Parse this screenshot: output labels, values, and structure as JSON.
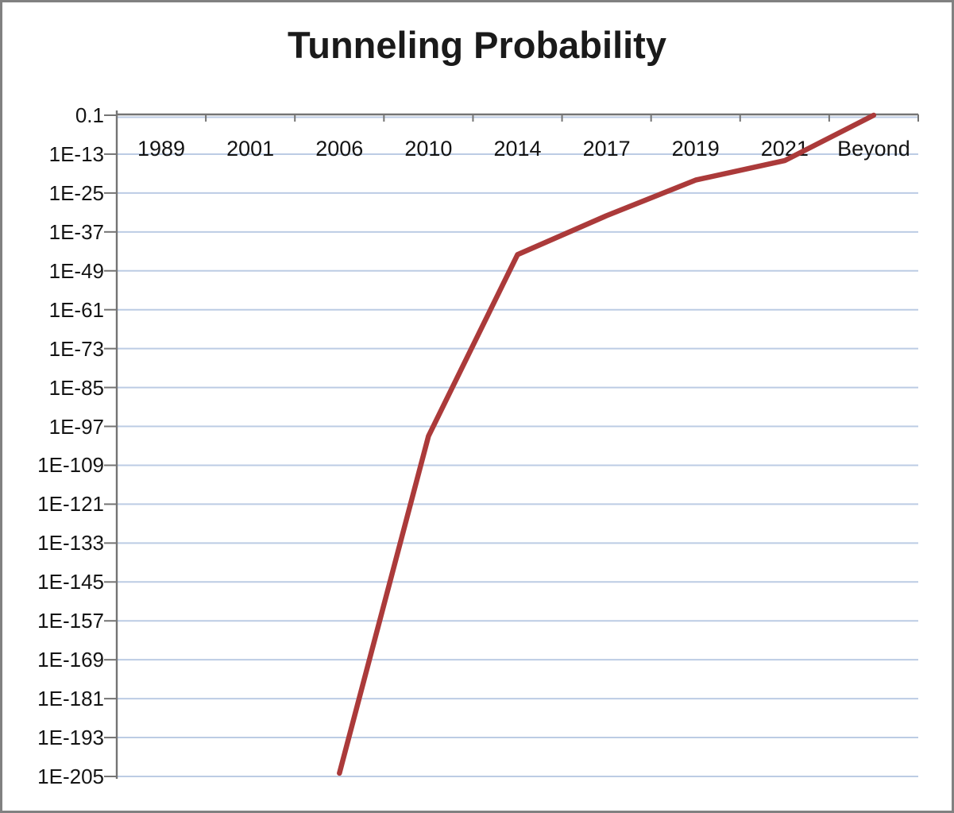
{
  "title": "Tunneling Probability",
  "chart_data": {
    "type": "line",
    "title": "Tunneling Probability",
    "categories": [
      "1989",
      "2001",
      "2006",
      "2010",
      "2014",
      "2017",
      "2019",
      "2021",
      "Beyond"
    ],
    "series": [
      {
        "name": "Tunneling Probability",
        "color": "#ab3a3a",
        "values": [
          null,
          null,
          1e-204,
          1e-100,
          1e-44,
          1e-32,
          1e-21,
          1e-15,
          0.1
        ]
      }
    ],
    "y_axis": {
      "scale": "log",
      "top_exponent": -1,
      "bottom_exponent": -205,
      "tick_labels": [
        "0.1",
        "1E-13",
        "1E-25",
        "1E-37",
        "1E-49",
        "1E-61",
        "1E-73",
        "1E-85",
        "1E-97",
        "1E-109",
        "1E-121",
        "1E-133",
        "1E-145",
        "1E-157",
        "1E-169",
        "1E-181",
        "1E-193",
        "1E-205"
      ]
    },
    "x_axis": {
      "position": "top",
      "labels_inside_plot": true
    },
    "grid": true,
    "legend_position": "none",
    "colors": {
      "series_line": "#ab3a3a",
      "gridline": "#bccce4",
      "axis_line": "#747474",
      "tick_text": "#141414",
      "title_text": "#1a1a1a",
      "background": "#ffffff"
    }
  }
}
